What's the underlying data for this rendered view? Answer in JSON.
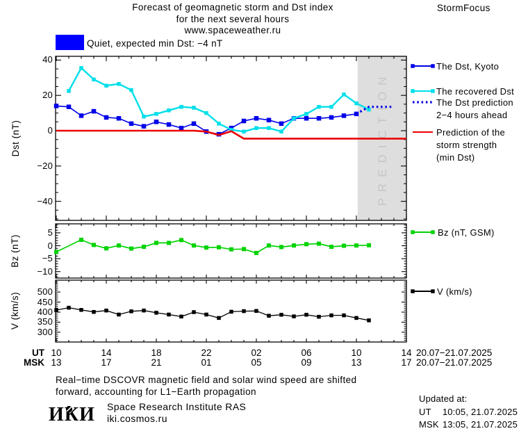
{
  "header": {
    "title_line1": "Forecast of geomagnetic storm and Dst index",
    "title_line2": "for the next several hours",
    "title_line3": "www.spaceweather.ru",
    "brand": "StormFocus"
  },
  "status": {
    "label": "Quiet, expected min Dst: −4 nT",
    "swatch_color": "#0000FF"
  },
  "chart_data": [
    {
      "type": "line",
      "panel": "dst",
      "ylabel": "Dst (nT)",
      "ylim": [
        -51,
        42
      ],
      "yticks": [
        40,
        20,
        0,
        -20,
        -40
      ],
      "y_minor_step": 5,
      "x_unit": "hours since 10:00 UT 20.07.2025",
      "x_span_hours": 28,
      "prediction_band": {
        "start_offset": 24.1,
        "end_offset": 28,
        "label": "PREDICTION",
        "fill": "#DEDEDE",
        "label_color": "#C6C6C6"
      },
      "series": [
        {
          "name": "The Dst, Kyoto",
          "color": "#0000E8",
          "style": "solid",
          "marker_size": 6.5,
          "line_width": 1.6,
          "offsets": [
            0,
            1,
            2,
            3,
            4,
            5,
            6,
            7,
            8,
            9,
            10,
            11,
            12,
            13,
            14,
            15,
            16,
            17,
            18,
            19,
            20,
            21,
            22,
            23,
            24
          ],
          "values": [
            14,
            13.5,
            8.5,
            11,
            7.5,
            7,
            4,
            2.5,
            5,
            3.5,
            1.5,
            4,
            -0.5,
            -2,
            1.5,
            5.5,
            7,
            6,
            4,
            7,
            7,
            7,
            7.5,
            8.5,
            9.5
          ]
        },
        {
          "name": "The recovered Dst",
          "color": "#00DFEA",
          "style": "solid",
          "marker_size": 5.5,
          "line_width": 2.4,
          "offsets": [
            1,
            2,
            3,
            4,
            5,
            6,
            7,
            8,
            9,
            10,
            11,
            12,
            13,
            14,
            15,
            16,
            17,
            18,
            19,
            20,
            21,
            22,
            23,
            24,
            25
          ],
          "values": [
            22.5,
            35.5,
            29,
            25.5,
            26.5,
            23,
            8,
            9.5,
            11.5,
            13.5,
            13,
            10,
            4,
            0.5,
            -0.5,
            1.5,
            1.5,
            -0.5,
            7,
            9.5,
            13.5,
            13.5,
            20.5,
            15.5,
            12
          ]
        },
        {
          "name": "The Dst prediction 2−4 hours ahead",
          "color": "#0000E8",
          "style": "dotted",
          "marker_size": 0,
          "line_width": 3.2,
          "offsets": [
            24,
            25,
            27
          ],
          "values": [
            9.5,
            13.5,
            13.5
          ]
        },
        {
          "name": "Prediction of the storm strength (min Dst)",
          "color": "#EB0000",
          "style": "solid",
          "marker_size": 0,
          "line_width": 2.6,
          "offsets": [
            0,
            11,
            12,
            13,
            14,
            15,
            28
          ],
          "values": [
            0,
            0,
            -0.5,
            -2.5,
            -0.3,
            -4.5,
            -4.5
          ]
        }
      ],
      "legend": [
        {
          "series": 0,
          "lines": [
            "The Dst, Kyoto"
          ]
        },
        {
          "series": 1,
          "lines": [
            "The recovered Dst"
          ]
        },
        {
          "series": 2,
          "lines": [
            "The Dst prediction",
            "2−4 hours ahead"
          ]
        },
        {
          "series": 3,
          "lines": [
            "Prediction of the",
            "storm strength",
            "(min Dst)"
          ]
        }
      ]
    },
    {
      "type": "line",
      "panel": "bz",
      "ylabel": "Bz (nT)",
      "ylim": [
        -13,
        8.3
      ],
      "yticks": [
        5,
        0,
        -5,
        -10
      ],
      "y_minor_step": 1,
      "x_unit": "hours since 10:00 UT 20.07.2025",
      "x_span_hours": 28,
      "series": [
        {
          "name": "Bz (nT, GSM)",
          "color": "#00D300",
          "style": "solid",
          "marker_size": 6,
          "line_width": 1.7,
          "offsets": [
            0,
            2,
            3,
            4,
            5,
            6,
            7,
            8,
            9,
            10,
            11,
            12,
            13,
            14,
            15,
            16,
            17,
            18,
            19,
            20,
            21,
            22,
            23,
            24,
            25
          ],
          "values": [
            -2.4,
            2.3,
            0.3,
            -1.0,
            0.1,
            -1.1,
            -0.4,
            1.1,
            1.1,
            2.2,
            0.1,
            -0.7,
            -0.6,
            -1.4,
            -1.3,
            -2.8,
            0.1,
            -0.5,
            0.1,
            0.6,
            0.8,
            -0.4,
            0.0,
            0.1,
            0.2
          ]
        }
      ],
      "legend": [
        {
          "series": 0,
          "lines": [
            "Bz (nT, GSM)"
          ]
        }
      ]
    },
    {
      "type": "line",
      "panel": "v",
      "ylabel": "V (km/s)",
      "ylim": [
        251,
        558
      ],
      "yticks": [
        500,
        450,
        400,
        350,
        300
      ],
      "y_minor_step": 10,
      "x_unit": "hours since 10:00 UT 20.07.2025",
      "x_span_hours": 28,
      "series": [
        {
          "name": "V (km/s)",
          "color": "#000000",
          "style": "solid",
          "marker_size": 5.5,
          "line_width": 1.3,
          "offsets": [
            0,
            1,
            2,
            3,
            4,
            5,
            6,
            7,
            8,
            9,
            10,
            11,
            12,
            13,
            14,
            15,
            16,
            17,
            18,
            19,
            20,
            21,
            22,
            23,
            24,
            25
          ],
          "values": [
            410,
            422,
            411,
            401,
            408,
            388,
            404,
            408,
            397,
            388,
            378,
            400,
            388,
            371,
            402,
            405,
            406,
            382,
            387,
            379,
            387,
            377,
            384,
            384,
            371,
            359
          ]
        }
      ],
      "legend": [
        {
          "series": 0,
          "lines": [
            "V (km/s)"
          ]
        }
      ]
    }
  ],
  "xaxis": {
    "ut_label": "UT",
    "msk_label": "MSK",
    "hour_offsets": [
      0,
      4,
      8,
      12,
      16,
      20,
      24,
      28
    ],
    "ut_hours": [
      "10",
      "14",
      "18",
      "22",
      "02",
      "06",
      "10",
      "14"
    ],
    "msk_hours": [
      "13",
      "17",
      "21",
      "01",
      "05",
      "09",
      "13",
      "17"
    ],
    "ut_date_range": "20.07−21.07.2025",
    "msk_date_range": "20.07−21.07.2025"
  },
  "footer": {
    "note_line1": "Real−time DSCOVR magnetic field and solar wind speed are shifted",
    "note_line2": "forward, accounting for L1−Earth propagation",
    "logo_text": "ИКИ",
    "org_name": "Space Research Institute RAS",
    "org_site": "iki.cosmos.ru",
    "updated_label": "Updated at:",
    "updated_ut_label": "UT",
    "updated_ut_value": "10:05, 21.07.2025",
    "updated_msk_label": "MSK",
    "updated_msk_value": "13:05, 21.07.2025"
  }
}
